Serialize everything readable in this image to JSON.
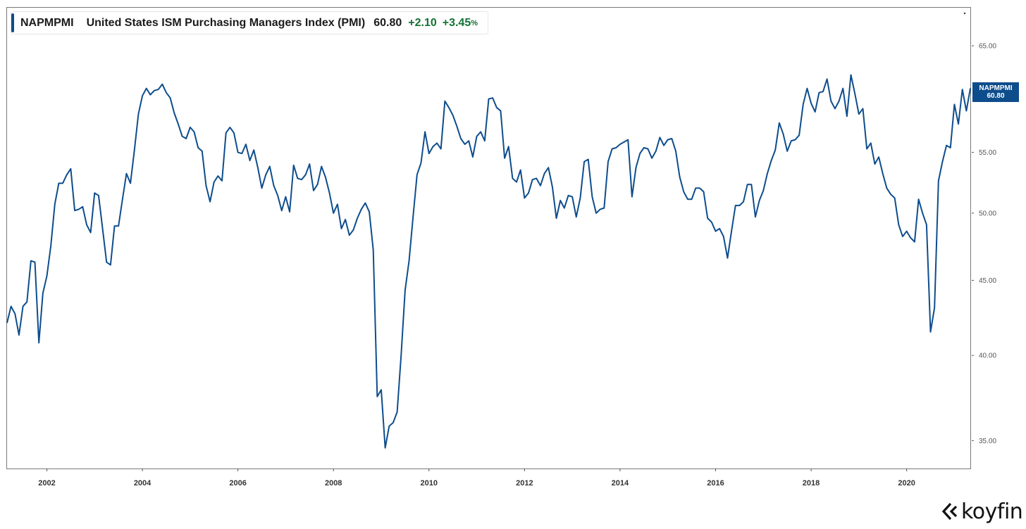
{
  "legend": {
    "symbol": "NAPMPMI",
    "name": "United States ISM Purchasing Managers Index (PMI)",
    "value": "60.80",
    "change": "+2.10",
    "change_pct": "+3.45",
    "pct_unit": "%"
  },
  "price_tag": {
    "symbol": "NAPMPMI",
    "value": "60.80"
  },
  "brand": {
    "name": "koyfin"
  },
  "colors": {
    "line": "#0e4d8c",
    "positive": "#137333",
    "tag_bg": "#0e4d8c"
  },
  "chart_data": {
    "type": "line",
    "title": "United States ISM Purchasing Managers Index (PMI)",
    "xlabel": "",
    "ylabel": "",
    "y_scale": "log",
    "ylim": [
      33.5,
      69
    ],
    "xlim": [
      "2001-03",
      "2021-05"
    ],
    "grid": false,
    "yticks": [
      35,
      40,
      45,
      50,
      55,
      65
    ],
    "ytick_labels": [
      "35.00",
      "40.00",
      "45.00",
      "50.00",
      "55.00",
      "65.00"
    ],
    "xticks": [
      "2002-01",
      "2004-01",
      "2006-01",
      "2008-01",
      "2010-01",
      "2012-01",
      "2014-01",
      "2016-01",
      "2018-01",
      "2020-01"
    ],
    "xtick_labels": [
      "2002",
      "2004",
      "2006",
      "2008",
      "2010",
      "2012",
      "2014",
      "2016",
      "2018",
      "2020"
    ],
    "series": [
      {
        "name": "NAPMPMI",
        "start": "2001-03",
        "frequency": "monthly",
        "values": [
          42.1,
          43.2,
          42.7,
          41.3,
          43.2,
          43.5,
          46.4,
          46.3,
          40.8,
          44.1,
          45.3,
          47.5,
          50.7,
          52.4,
          52.4,
          53.1,
          53.6,
          50.2,
          50.3,
          50.5,
          49.1,
          48.5,
          51.6,
          51.4,
          48.8,
          46.3,
          46.1,
          49.0,
          49.0,
          51.1,
          53.2,
          52.4,
          55.2,
          58.4,
          60.1,
          60.8,
          60.2,
          60.6,
          60.7,
          61.2,
          60.4,
          59.9,
          58.5,
          57.5,
          56.4,
          56.2,
          57.2,
          56.8,
          55.4,
          55.1,
          52.2,
          50.9,
          52.5,
          53.0,
          52.6,
          56.7,
          57.2,
          56.7,
          55.0,
          54.9,
          55.7,
          54.3,
          55.2,
          53.7,
          52.0,
          53.1,
          53.8,
          52.2,
          51.4,
          50.2,
          51.3,
          50.1,
          53.9,
          52.8,
          52.7,
          53.1,
          54.0,
          51.8,
          52.3,
          53.8,
          52.9,
          51.6,
          50.0,
          50.7,
          48.8,
          49.5,
          48.3,
          48.7,
          49.6,
          50.3,
          50.8,
          50.1,
          47.2,
          37.5,
          37.9,
          34.6,
          35.8,
          36.0,
          36.6,
          40.0,
          44.3,
          46.4,
          49.7,
          53.1,
          54.1,
          56.8,
          54.9,
          55.5,
          55.8,
          55.3,
          59.6,
          59.0,
          58.3,
          57.3,
          56.2,
          55.7,
          56.0,
          54.6,
          56.4,
          56.8,
          56.0,
          59.8,
          59.9,
          59.0,
          58.7,
          54.5,
          55.5,
          52.8,
          52.5,
          53.5,
          51.2,
          51.6,
          52.7,
          52.8,
          52.2,
          53.2,
          53.7,
          52.1,
          49.6,
          51.0,
          50.4,
          51.4,
          51.3,
          49.7,
          51.2,
          54.2,
          54.4,
          51.3,
          50.0,
          50.3,
          50.4,
          54.2,
          55.3,
          55.4,
          55.7,
          55.9,
          56.1,
          51.3,
          53.7,
          54.9,
          55.4,
          55.3,
          54.5,
          55.1,
          56.3,
          55.6,
          56.1,
          56.2,
          55.1,
          52.9,
          51.7,
          51.1,
          51.1,
          52.0,
          52.0,
          51.7,
          49.6,
          49.3,
          48.6,
          48.8,
          48.2,
          46.6,
          48.6,
          50.6,
          50.6,
          50.9,
          52.3,
          52.3,
          49.7,
          51.0,
          51.8,
          53.2,
          54.3,
          55.2,
          57.6,
          56.6,
          55.1,
          56.0,
          56.1,
          56.5,
          59.3,
          60.8,
          59.4,
          58.6,
          60.4,
          60.5,
          61.7,
          59.6,
          58.9,
          59.6,
          60.8,
          58.2,
          62.1,
          60.3,
          58.4,
          58.9,
          55.3,
          55.8,
          54.0,
          54.6,
          53.2,
          52.0,
          51.5,
          51.2,
          49.1,
          48.2,
          48.6,
          48.1,
          47.8,
          51.1,
          50.0,
          49.1,
          41.5,
          43.1,
          52.6,
          54.2,
          55.6,
          55.4,
          59.3,
          57.5,
          60.7,
          58.7,
          60.8
        ]
      }
    ]
  }
}
